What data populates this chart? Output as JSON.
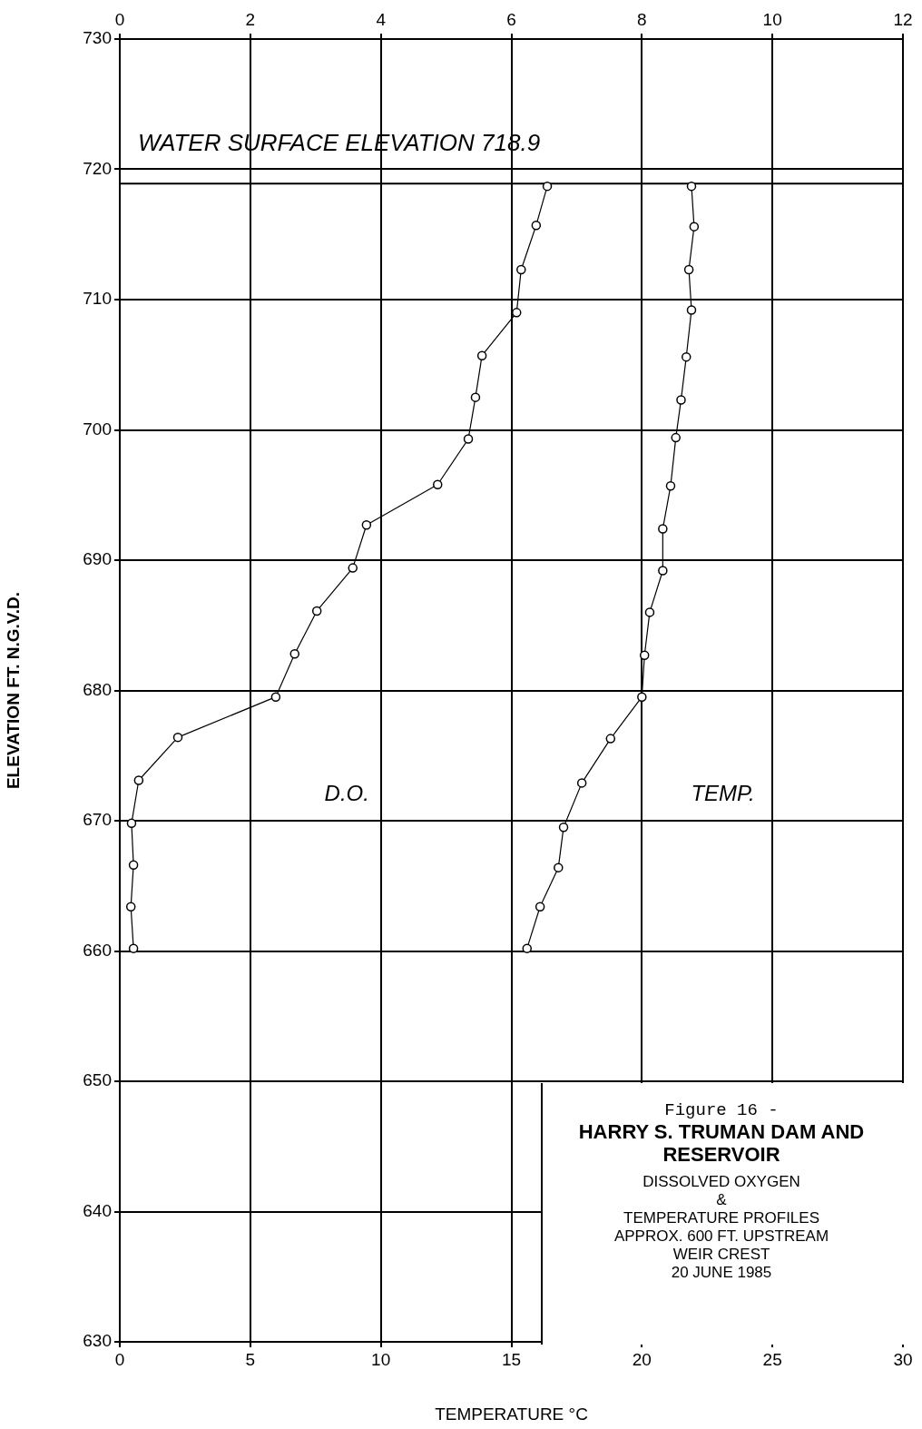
{
  "chart_data": {
    "type": "line",
    "title": "HARRY S. TRUMAN DAM AND RESERVOIR",
    "subtitle": "DISSOLVED OXYGEN\n&\nTEMPERATURE PROFILES\nAPPROX. 600 FT. UPSTREAM\nWEIR CREST\n20 JUNE 1985",
    "annotations": [
      "Figure 16 -"
    ],
    "xlabel": "TEMPERATURE °C",
    "ylabel": "ELEVATION FT. N.G.V.D.",
    "xlim": [
      0,
      30
    ],
    "xticks": [
      0,
      5,
      10,
      15,
      20,
      25,
      30
    ],
    "x2lim": [
      0,
      12
    ],
    "x2ticks": [
      0,
      2,
      4,
      6,
      8,
      10,
      12
    ],
    "ylim": [
      630,
      730
    ],
    "yticks": [
      630,
      640,
      650,
      660,
      670,
      680,
      690,
      700,
      710,
      720,
      730
    ],
    "grid": true,
    "legend": false,
    "marker": "circle",
    "line_style": "solid",
    "ref_lines": [
      {
        "axis": "y",
        "value": 718.9,
        "label": "WATER SURFACE ELEVATION 718.9",
        "color": "#000000"
      }
    ],
    "series": [
      {
        "name": "D.O.",
        "color": "#000000",
        "axis": "x2",
        "x": [
          6.55,
          6.38,
          6.15,
          6.08,
          5.55,
          5.45,
          5.34,
          4.87,
          3.78,
          3.57,
          3.02,
          2.68,
          2.39,
          0.89,
          0.29,
          0.18,
          0.21,
          0.17,
          0.21
        ],
        "values": [
          718.7,
          715.7,
          712.3,
          709.0,
          705.7,
          702.5,
          699.3,
          695.8,
          692.7,
          689.4,
          686.1,
          682.8,
          679.5,
          676.4,
          673.1,
          669.8,
          666.6,
          663.4,
          660.2
        ]
      },
      {
        "name": "TEMP.",
        "color": "#000000",
        "x": [
          21.9,
          22.0,
          21.8,
          21.9,
          21.7,
          21.5,
          21.3,
          21.1,
          20.8,
          20.8,
          20.3,
          20.1,
          20.0,
          18.8,
          17.7,
          17.0,
          16.8,
          16.1,
          15.6
        ],
        "values": [
          718.7,
          715.6,
          712.3,
          709.2,
          705.6,
          702.3,
          699.4,
          695.7,
          692.4,
          689.2,
          686.0,
          682.7,
          679.5,
          676.3,
          672.9,
          669.5,
          666.4,
          663.4,
          660.2
        ]
      }
    ]
  }
}
